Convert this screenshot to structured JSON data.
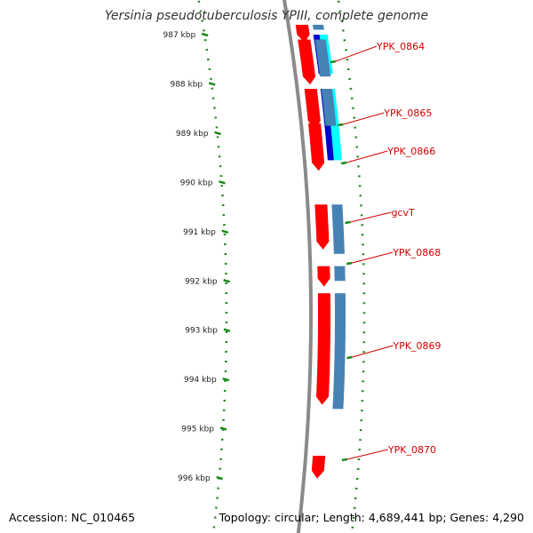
{
  "title": "Yersinia pseudotuberculosis YPIII, complete genome",
  "footer": {
    "accession": "Accession: NC_010465",
    "summary": "Topology: circular; Length: 4,689,441 bp; Genes: 4,290"
  },
  "colors": {
    "backbone": "#8a8a8a",
    "gc_ticks": "#1a8a1a",
    "cds_forward": "#ff0000",
    "cds_reverse": "#4682b4",
    "blast_light": "#00ffff",
    "blast_dark": "#0000cc",
    "label_red": "#d40000"
  },
  "scale": {
    "unit": "kbp",
    "ticks": [
      {
        "value": 987,
        "label": "987 kbp"
      },
      {
        "value": 988,
        "label": "988 kbp"
      },
      {
        "value": 989,
        "label": "989 kbp"
      },
      {
        "value": 990,
        "label": "990 kbp"
      },
      {
        "value": 991,
        "label": "991 kbp"
      },
      {
        "value": 992,
        "label": "992 kbp"
      },
      {
        "value": 993,
        "label": "993 kbp"
      },
      {
        "value": 994,
        "label": "994 kbp"
      },
      {
        "value": 995,
        "label": "995 kbp"
      },
      {
        "value": 996,
        "label": "996 kbp"
      }
    ]
  },
  "genes": [
    {
      "name": "YPK_0864",
      "start": 987.1,
      "end": 987.85
    },
    {
      "name": "YPK_0865",
      "start": 988.1,
      "end": 989.45
    },
    {
      "name": "YPK_0866",
      "start": 989.45,
      "end": 989.7
    },
    {
      "name": "gcvT",
      "start": 990.45,
      "end": 991.55
    },
    {
      "name": "YPK_0868",
      "start": 991.7,
      "end": 992.05
    },
    {
      "name": "YPK_0869",
      "start": 992.25,
      "end": 995.0
    },
    {
      "name": "YPK_0870",
      "start": 995.55,
      "end": 995.9
    }
  ]
}
